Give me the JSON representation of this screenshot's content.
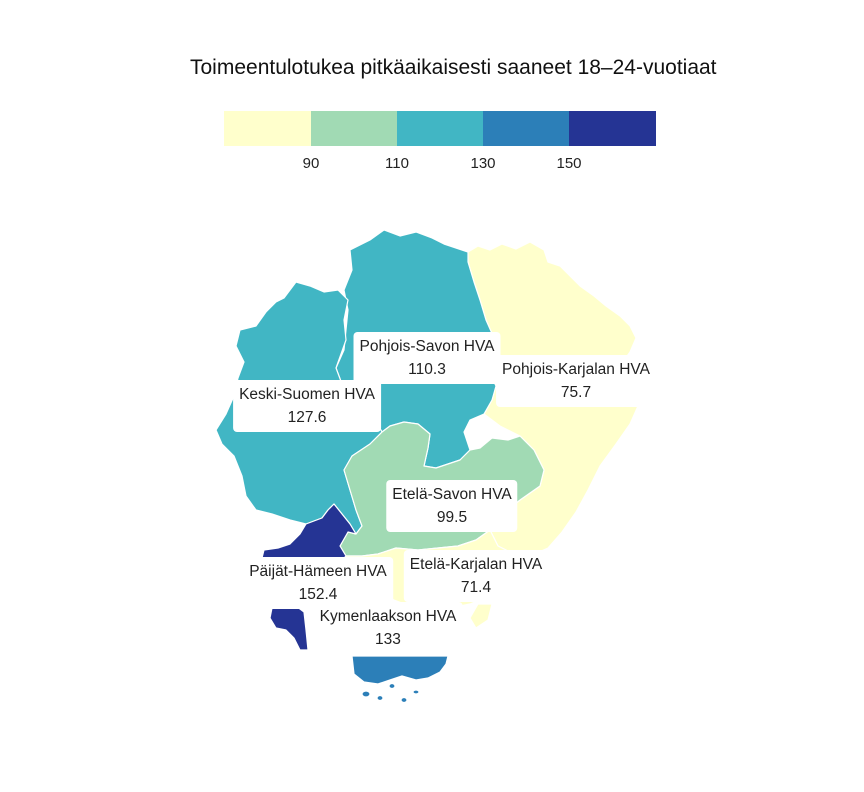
{
  "title": "Toimeentulotukea pitkäaikaisesti saaneet 18–24-vuotiaat",
  "legend": {
    "breaks": [
      "90",
      "110",
      "130",
      "150"
    ],
    "colors": [
      "#ffffcc",
      "#a1dab4",
      "#41b6c4",
      "#2c7fb8",
      "#253494"
    ]
  },
  "regions": [
    {
      "name": "Pohjois-Savon HVA",
      "value": "110.3",
      "color": "#41b6c4"
    },
    {
      "name": "Pohjois-Karjalan HVA",
      "value": "75.7",
      "color": "#ffffcc"
    },
    {
      "name": "Keski-Suomen HVA",
      "value": "127.6",
      "color": "#41b6c4"
    },
    {
      "name": "Etelä-Savon HVA",
      "value": "99.5",
      "color": "#a1dab4"
    },
    {
      "name": "Etelä-Karjalan HVA",
      "value": "71.4",
      "color": "#ffffcc"
    },
    {
      "name": "Päijät-Hämeen HVA",
      "value": "152.4",
      "color": "#253494"
    },
    {
      "name": "Kymenlaakson HVA",
      "value": "133",
      "color": "#2c7fb8"
    }
  ]
}
